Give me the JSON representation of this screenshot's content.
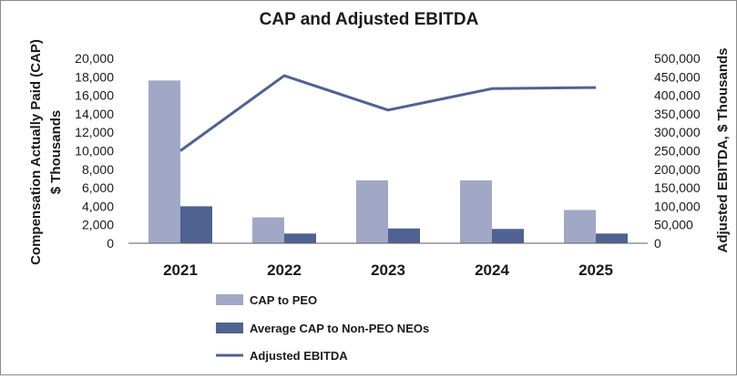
{
  "chart_data": {
    "type": "bar",
    "title": "CAP and Adjusted EBITDA",
    "categories": [
      "2021",
      "2022",
      "2023",
      "2024",
      "2025"
    ],
    "y_left": {
      "label_line1": "Compensation Actually Paid (CAP)",
      "label_line2": "$ Thousands",
      "ylim": [
        0,
        20000
      ],
      "ticks": [
        "0",
        "2,000",
        "4,000",
        "6,000",
        "8,000",
        "10,000",
        "12,000",
        "14,000",
        "16,000",
        "18,000",
        "20,000"
      ]
    },
    "y_right": {
      "label": "Adjusted EBITDA, $ Thousands",
      "ylim": [
        0,
        500000
      ],
      "ticks": [
        "0",
        "50,000",
        "100,000",
        "150,000",
        "200,000",
        "250,000",
        "300,000",
        "350,000",
        "400,000",
        "450,000",
        "500,000"
      ]
    },
    "series": [
      {
        "name": "CAP to PEO",
        "kind": "bar",
        "axis": "left",
        "color": "#a1a8c6",
        "values": [
          17600,
          2800,
          6800,
          6800,
          3600
        ]
      },
      {
        "name": "Average CAP to Non-PEO NEOs",
        "kind": "bar",
        "axis": "left",
        "color": "#4f6291",
        "values": [
          4000,
          1050,
          1600,
          1550,
          1050
        ]
      },
      {
        "name": "Adjusted EBITDA",
        "kind": "line",
        "axis": "right",
        "color": "#4f6291",
        "values": [
          250000,
          453000,
          360000,
          418000,
          421000
        ]
      }
    ],
    "legend_position": "bottom-center",
    "grid": false
  }
}
